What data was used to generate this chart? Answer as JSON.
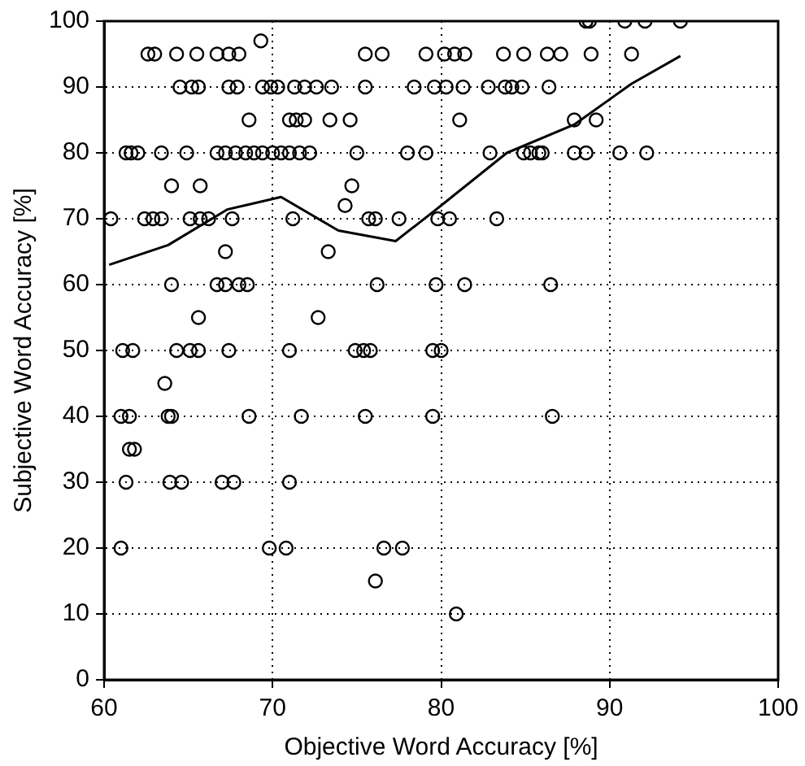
{
  "chart_data": {
    "type": "scatter",
    "xlabel": "Objective Word Accuracy [%]",
    "ylabel": "Subjective Word Accuracy [%]",
    "xlim": [
      60,
      100
    ],
    "xticks": [
      60,
      70,
      80,
      90,
      100
    ],
    "ylim": [
      0,
      100
    ],
    "yticks": [
      0,
      10,
      20,
      30,
      40,
      50,
      60,
      70,
      80,
      90,
      100
    ],
    "grid": true,
    "legend": false,
    "series": [
      {
        "color": "#000000",
        "marker": "circle",
        "x": [
          88.6,
          88.8,
          90.9,
          92.1,
          94.2,
          69.3,
          62.6,
          63.0,
          64.3,
          65.5,
          66.7,
          67.4,
          68.0,
          75.5,
          76.5,
          79.1,
          80.2,
          80.8,
          81.4,
          83.7,
          84.9,
          86.3,
          87.1,
          88.9,
          91.3,
          64.5,
          65.2,
          65.6,
          67.4,
          67.9,
          69.4,
          69.9,
          70.3,
          71.3,
          71.9,
          72.6,
          73.5,
          75.5,
          78.4,
          79.6,
          80.3,
          81.3,
          82.8,
          83.8,
          84.2,
          84.8,
          86.4,
          68.6,
          71.0,
          71.4,
          71.9,
          73.4,
          74.6,
          81.1,
          87.9,
          89.2,
          61.3,
          61.6,
          62.0,
          63.4,
          64.9,
          66.7,
          67.2,
          67.8,
          68.4,
          68.9,
          69.4,
          70.0,
          70.5,
          71.0,
          71.6,
          72.2,
          75.0,
          78.0,
          79.1,
          82.9,
          84.9,
          85.3,
          85.8,
          86.0,
          87.9,
          88.6,
          90.6,
          92.2,
          64.0,
          65.7,
          74.7,
          74.3,
          60.4,
          62.4,
          62.9,
          63.4,
          65.1,
          65.7,
          66.2,
          67.6,
          71.2,
          75.7,
          76.1,
          77.5,
          79.8,
          80.5,
          83.3,
          67.2,
          73.3,
          64.0,
          66.7,
          67.2,
          68.0,
          68.5,
          76.2,
          79.7,
          81.4,
          86.5,
          65.6,
          72.7,
          61.1,
          61.7,
          64.3,
          65.1,
          65.6,
          67.4,
          71.0,
          74.9,
          75.4,
          75.8,
          79.5,
          80.0,
          63.6,
          61.0,
          61.5,
          63.8,
          64.0,
          68.6,
          71.7,
          75.5,
          79.5,
          86.6,
          61.5,
          61.8,
          61.3,
          63.9,
          64.6,
          67.0,
          67.7,
          71.0,
          61.0,
          69.8,
          70.8,
          76.6,
          77.7,
          76.1,
          80.9
        ],
        "values": [
          100,
          100,
          100,
          100,
          100,
          97,
          95,
          95,
          95,
          95,
          95,
          95,
          95,
          95,
          95,
          95,
          95,
          95,
          95,
          95,
          95,
          95,
          95,
          95,
          95,
          90,
          90,
          90,
          90,
          90,
          90,
          90,
          90,
          90,
          90,
          90,
          90,
          90,
          90,
          90,
          90,
          90,
          90,
          90,
          90,
          90,
          90,
          85,
          85,
          85,
          85,
          85,
          85,
          85,
          85,
          85,
          80,
          80,
          80,
          80,
          80,
          80,
          80,
          80,
          80,
          80,
          80,
          80,
          80,
          80,
          80,
          80,
          80,
          80,
          80,
          80,
          80,
          80,
          80,
          80,
          80,
          80,
          80,
          80,
          75,
          75,
          75,
          72,
          70,
          70,
          70,
          70,
          70,
          70,
          70,
          70,
          70,
          70,
          70,
          70,
          70,
          70,
          70,
          65,
          65,
          60,
          60,
          60,
          60,
          60,
          60,
          60,
          60,
          60,
          55,
          55,
          50,
          50,
          50,
          50,
          50,
          50,
          50,
          50,
          50,
          50,
          50,
          50,
          45,
          40,
          40,
          40,
          40,
          40,
          40,
          40,
          40,
          40,
          35,
          35,
          30,
          30,
          30,
          30,
          30,
          30,
          20,
          20,
          20,
          20,
          20,
          15,
          10
        ]
      },
      {
        "type": "line",
        "color": "#000000",
        "marker": "none",
        "line_style": "solid",
        "x": [
          60.3,
          63.8,
          67.3,
          70.5,
          73.9,
          77.3,
          80.0,
          83.9,
          87.9,
          91.3,
          94.2
        ],
        "values": [
          63,
          66,
          71.4,
          73.3,
          68.2,
          66.6,
          72,
          80,
          84.3,
          90.5,
          94.7
        ]
      }
    ]
  }
}
